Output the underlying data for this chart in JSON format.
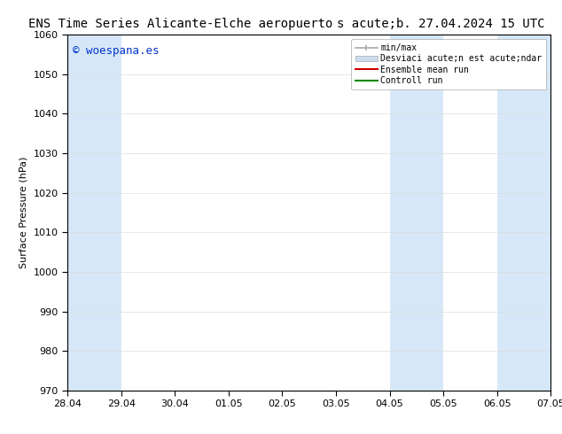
{
  "title": "ENS Time Series Alicante-Elche aeropuerto",
  "subtitle": "s acute;b. 27.04.2024 15 UTC",
  "ylabel": "Surface Pressure (hPa)",
  "ylim": [
    970,
    1060
  ],
  "yticks": [
    970,
    980,
    990,
    1000,
    1010,
    1020,
    1030,
    1040,
    1050,
    1060
  ],
  "x_labels": [
    "28.04",
    "29.04",
    "30.04",
    "01.05",
    "02.05",
    "03.05",
    "04.05",
    "05.05",
    "06.05",
    "07.05"
  ],
  "x_values": [
    0,
    1,
    2,
    3,
    4,
    5,
    6,
    7,
    8,
    9
  ],
  "xlim": [
    0,
    9
  ],
  "bg_color": "#ffffff",
  "plot_bg_color": "#ffffff",
  "shaded_bands": [
    {
      "x_start": 0,
      "x_end": 1,
      "color": "#d6e8f7"
    },
    {
      "x_start": 6,
      "x_end": 7,
      "color": "#d6e8f7"
    },
    {
      "x_start": 8,
      "x_end": 9,
      "color": "#d6e8f7"
    }
  ],
  "watermark": "© woespana.es",
  "watermark_color": "#0033cc",
  "legend_labels": [
    "min/max",
    "Desviaci acute;n est acute;ndar",
    "Ensemble mean run",
    "Controll run"
  ],
  "legend_colors": [
    "#aaaaaa",
    "#ccdded",
    "#cc0000",
    "#008800"
  ],
  "title_fontsize": 10,
  "subtitle_fontsize": 10,
  "axis_label_fontsize": 8,
  "tick_fontsize": 8,
  "watermark_fontsize": 9,
  "grid_color": "#dddddd",
  "spine_color": "#000000"
}
